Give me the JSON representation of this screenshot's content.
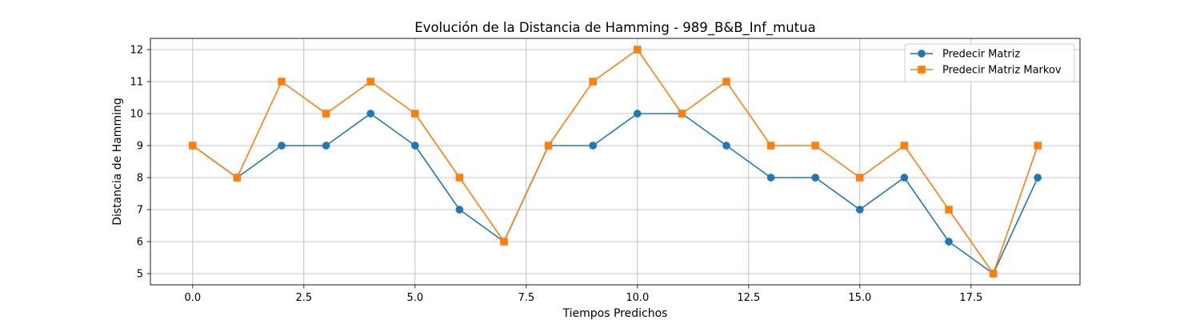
{
  "chart_data": {
    "type": "line",
    "title": "Evolución de la Distancia de Hamming - 989_B&B_Inf_mutua",
    "xlabel": "Tiempos Predichos",
    "ylabel": "Distancia de Hamming",
    "xlim": [
      -0.95,
      19.95
    ],
    "ylim": [
      4.65,
      12.35
    ],
    "xticks": [
      0.0,
      2.5,
      5.0,
      7.5,
      10.0,
      12.5,
      15.0,
      17.5
    ],
    "xtick_labels": [
      "0.0",
      "2.5",
      "5.0",
      "7.5",
      "10.0",
      "12.5",
      "15.0",
      "17.5"
    ],
    "yticks": [
      5,
      6,
      7,
      8,
      9,
      10,
      11,
      12
    ],
    "ytick_labels": [
      "5",
      "6",
      "7",
      "8",
      "9",
      "10",
      "11",
      "12"
    ],
    "grid": true,
    "legend_position": "top-right",
    "x": [
      0,
      1,
      2,
      3,
      4,
      5,
      6,
      7,
      8,
      9,
      10,
      11,
      12,
      13,
      14,
      15,
      16,
      17,
      18,
      19
    ],
    "series": [
      {
        "name": "Predecir Matriz",
        "color": "#1f77b4",
        "marker": "circle",
        "values": [
          9,
          8,
          9,
          9,
          10,
          9,
          7,
          6,
          9,
          9,
          10,
          10,
          9,
          8,
          8,
          7,
          8,
          6,
          5,
          8
        ]
      },
      {
        "name": "Predecir Matriz Markov",
        "color": "#ff7f0e",
        "marker": "square",
        "values": [
          9,
          8,
          11,
          10,
          11,
          10,
          8,
          6,
          9,
          11,
          12,
          10,
          11,
          9,
          9,
          8,
          9,
          7,
          5,
          9
        ]
      }
    ]
  }
}
